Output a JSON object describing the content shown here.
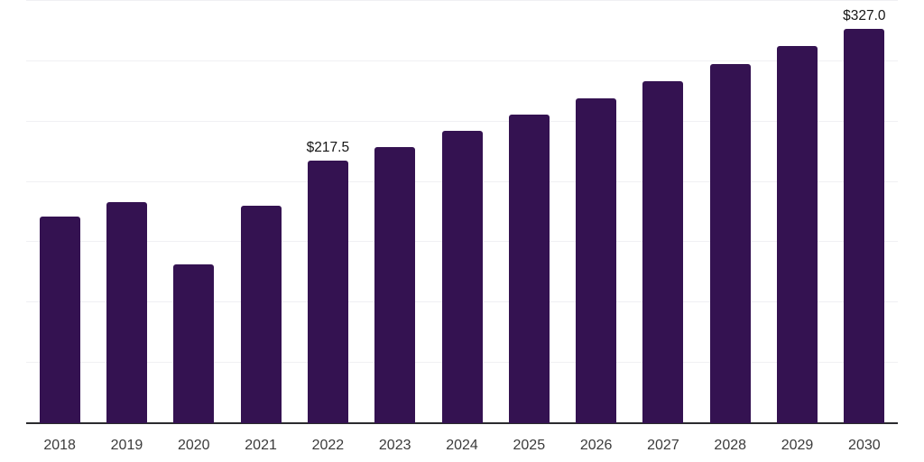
{
  "chart_data": {
    "type": "bar",
    "title": "",
    "xlabel": "",
    "ylabel": "",
    "categories": [
      "2018",
      "2019",
      "2020",
      "2021",
      "2022",
      "2023",
      "2024",
      "2025",
      "2026",
      "2027",
      "2028",
      "2029",
      "2030"
    ],
    "values": [
      171.5,
      183.5,
      132,
      180,
      217.5,
      229,
      242.5,
      256,
      269,
      283.5,
      297.5,
      312.5,
      327
    ],
    "data_labels": {
      "2022": "$217.5",
      "2030": "$327.0"
    },
    "ylim": [
      0,
      350
    ],
    "gridline_step": 50,
    "grid": "horizontal-only",
    "legend": "none",
    "y_tick_labels_shown": false,
    "colors": {
      "bar": "#341251",
      "gridline": "#f0f0f3",
      "axis": "#2b2b2e",
      "tick_text": "#3b3b3b",
      "value_label_text": "#161616",
      "background": "#ffffff"
    }
  }
}
